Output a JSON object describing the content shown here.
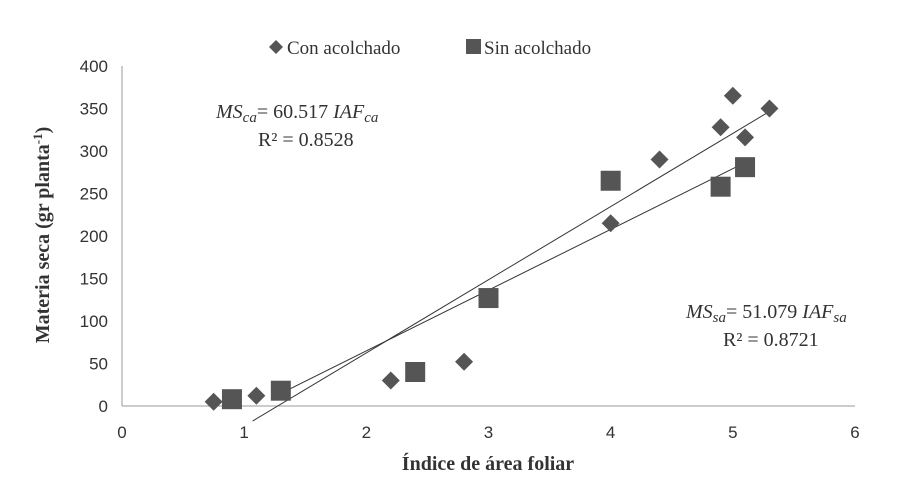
{
  "chart_data": {
    "type": "scatter",
    "xlabel": "Índice de área foliar",
    "ylabel": "Materia seca (gr planta",
    "ylabel_sup": "-1",
    "ylabel_close": ")",
    "xlim": [
      0,
      6
    ],
    "ylim": [
      0,
      400
    ],
    "x_ticks": [
      "0",
      "1",
      "2",
      "3",
      "4",
      "5",
      "6"
    ],
    "y_ticks": [
      "0",
      "50",
      "100",
      "150",
      "200",
      "250",
      "300",
      "350",
      "400"
    ],
    "grid": false,
    "legend_position": "top",
    "series": [
      {
        "name": "Con acolchado",
        "marker": "diamond",
        "color": "#555555",
        "points": [
          [
            0.75,
            5
          ],
          [
            1.1,
            12
          ],
          [
            2.2,
            30
          ],
          [
            2.8,
            52
          ],
          [
            4.0,
            215
          ],
          [
            4.4,
            290
          ],
          [
            4.9,
            328
          ],
          [
            5.0,
            365
          ],
          [
            5.1,
            316
          ],
          [
            5.3,
            350
          ]
        ],
        "trendline": {
          "x_start": 1.07,
          "x_end": 5.3
        },
        "equation": {
          "lhs": "MS",
          "lhs_sub": "ca",
          "eq": "= 60.517",
          "rhs": "IAF",
          "rhs_sub": "ca",
          "r2": "R² = 0.8528"
        }
      },
      {
        "name": "Sin acolchado",
        "marker": "square",
        "color": "#555555",
        "points": [
          [
            0.9,
            8
          ],
          [
            1.3,
            18
          ],
          [
            2.4,
            40
          ],
          [
            3.0,
            127
          ],
          [
            4.0,
            265
          ],
          [
            4.9,
            258
          ],
          [
            5.1,
            281
          ]
        ],
        "trendline": {
          "x_start": 1.3,
          "x_end": 5.1
        },
        "equation": {
          "lhs": "MS",
          "lhs_sub": "sa",
          "eq": "= 51.079",
          "rhs": "IAF",
          "rhs_sub": "sa",
          "r2": "R² = 0.8721"
        }
      }
    ]
  }
}
